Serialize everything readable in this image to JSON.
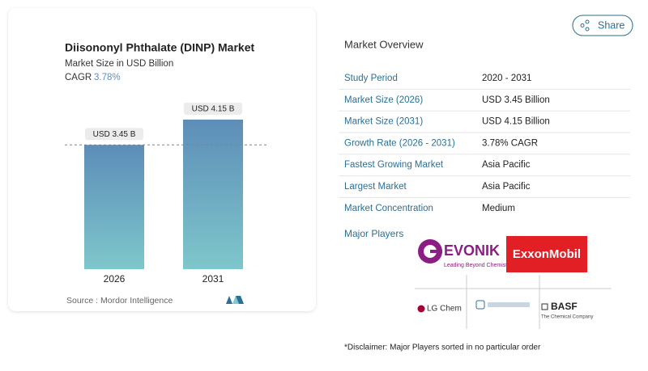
{
  "chart_data": {
    "type": "bar",
    "title": "Diisononyl Phthalate (DINP) Market",
    "subtitle": "Market Size in USD Billion",
    "cagr_label": "CAGR",
    "cagr_value": "3.78%",
    "categories": [
      "2026",
      "2031"
    ],
    "values": [
      3.45,
      4.15
    ],
    "value_labels": [
      "USD 3.45 B",
      "USD 4.15 B"
    ],
    "source": "Source :  Mordor Intelligence"
  },
  "share_button": "Share",
  "overview": {
    "title": "Market Overview",
    "rows": [
      [
        "Study Period",
        "2020 - 2031"
      ],
      [
        "Market Size (2026)",
        "USD 3.45 Billion"
      ],
      [
        "Market Size (2031)",
        "USD 4.15 Billion"
      ],
      [
        "Growth Rate (2026 - 2031)",
        "3.78% CAGR"
      ],
      [
        "Fastest Growing Market",
        "Asia Pacific"
      ],
      [
        "Largest Market",
        "Asia Pacific"
      ],
      [
        "Market Concentration",
        "Medium"
      ]
    ]
  },
  "players": {
    "title": "Major Players",
    "evonik": "EVONIK",
    "evonik_tagline": "Leading Beyond Chemistry",
    "exxon": "ExxonMobil",
    "lgchem": "LG Chem",
    "basf": "BASF",
    "basf_tagline": "The Chemical Company"
  },
  "disclaimer": "*Disclaimer: Major Players sorted in no particular order"
}
